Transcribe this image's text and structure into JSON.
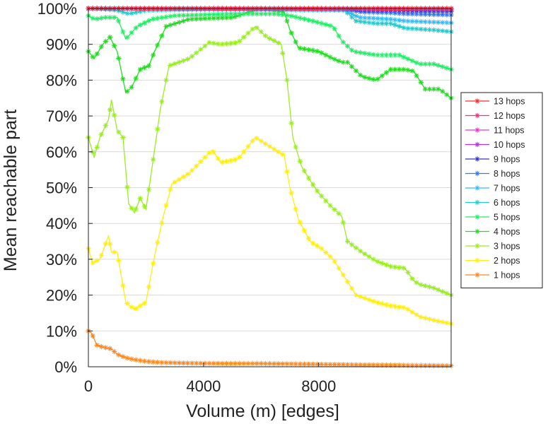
{
  "chart_data": {
    "type": "line",
    "title": "",
    "xlabel": "Volume (m) [edges]",
    "ylabel": "Mean reachable part",
    "xlim": [
      0,
      12600
    ],
    "ylim": [
      0,
      100
    ],
    "x_ticks": [
      0,
      4000,
      8000
    ],
    "x_tick_labels": [
      "0",
      "4000",
      "8000"
    ],
    "y_ticks": [
      0,
      10,
      20,
      30,
      40,
      50,
      60,
      70,
      80,
      90,
      100
    ],
    "y_tick_labels": [
      "0%",
      "10%",
      "20%",
      "30%",
      "40%",
      "50%",
      "60%",
      "70%",
      "80%",
      "90%",
      "100%"
    ],
    "grid": "horizontal",
    "legend_position": "right",
    "series": [
      {
        "name": "13 hops",
        "color": "#ff2a2a",
        "x": [
          0,
          9500,
          12600
        ],
        "y": [
          100,
          100,
          100
        ]
      },
      {
        "name": "12 hops",
        "color": "#ff2a7f",
        "x": [
          0,
          9500,
          12600
        ],
        "y": [
          100,
          100,
          100
        ]
      },
      {
        "name": "11 hops",
        "color": "#ee33cc",
        "x": [
          0,
          9000,
          12600
        ],
        "y": [
          100,
          99.9,
          99.9
        ]
      },
      {
        "name": "10 hops",
        "color": "#aa33ee",
        "x": [
          0,
          9000,
          12600
        ],
        "y": [
          100,
          99.9,
          99.8
        ]
      },
      {
        "name": "9 hops",
        "color": "#3333cc",
        "x": [
          0,
          8900,
          9500,
          10500,
          11000,
          12600
        ],
        "y": [
          100,
          99.9,
          99.5,
          99.5,
          99.3,
          99.2
        ]
      },
      {
        "name": "8 hops",
        "color": "#3377ff",
        "x": [
          0,
          8900,
          9500,
          10500,
          11000,
          12600
        ],
        "y": [
          100,
          99.8,
          99,
          98.8,
          98.5,
          98.2
        ]
      },
      {
        "name": "7 hops",
        "color": "#33bbff",
        "x": [
          0,
          8900,
          9400,
          10500,
          11000,
          12600
        ],
        "y": [
          100,
          99.5,
          97.5,
          97,
          96.5,
          96
        ]
      },
      {
        "name": "6 hops",
        "color": "#22cccc",
        "x": [
          0,
          400,
          1000,
          1400,
          2000,
          6000,
          8900,
          9300,
          10000,
          10500,
          11000,
          12000,
          12600
        ],
        "y": [
          100,
          99.9,
          99.5,
          98.5,
          99.5,
          100,
          99.5,
          96.5,
          95.8,
          95.8,
          94.5,
          94,
          93.5
        ]
      },
      {
        "name": "5 hops",
        "color": "#22ee66",
        "x": [
          0,
          200,
          600,
          1000,
          1300,
          1700,
          2200,
          3000,
          5000,
          6500,
          7000,
          7800,
          8500,
          8800,
          9200,
          10000,
          10800,
          11500,
          12000,
          12600
        ],
        "y": [
          98,
          97,
          97.5,
          97.5,
          91.5,
          95,
          97,
          98,
          98.5,
          98.5,
          98,
          96.5,
          95,
          91,
          88,
          87,
          87,
          84.5,
          84.5,
          83
        ]
      },
      {
        "name": "4 hops",
        "color": "#22dd22",
        "x": [
          0,
          200,
          500,
          750,
          1000,
          1300,
          1500,
          1800,
          2100,
          2300,
          2700,
          3500,
          5000,
          6000,
          6800,
          7000,
          7300,
          8000,
          8500,
          8800,
          9000,
          9500,
          10000,
          10500,
          11000,
          11300,
          11700,
          12200,
          12600
        ],
        "y": [
          88,
          86,
          90,
          92,
          88,
          76.5,
          78,
          83,
          84,
          88,
          95,
          97,
          97.5,
          100,
          99,
          94,
          89,
          88,
          86,
          85,
          85,
          81,
          80,
          83,
          83,
          82.5,
          77.5,
          77.5,
          75
        ]
      },
      {
        "name": "3 hops",
        "color": "#99ee22",
        "x": [
          0,
          200,
          400,
          700,
          800,
          1000,
          1200,
          1400,
          1600,
          1800,
          2000,
          2200,
          2500,
          2800,
          3500,
          4200,
          4600,
          5200,
          5800,
          6200,
          6700,
          6900,
          7100,
          7400,
          7700,
          8000,
          8400,
          8800,
          9000,
          9500,
          10000,
          10500,
          11000,
          11300,
          11500,
          12000,
          12600
        ],
        "y": [
          64,
          58.5,
          64,
          69,
          74.5,
          66,
          64,
          45.5,
          43,
          47,
          44,
          55,
          72,
          84,
          86,
          90.5,
          90,
          90.5,
          95,
          92,
          90,
          80,
          64,
          56,
          52,
          48.5,
          45,
          42,
          35,
          32,
          29.5,
          28,
          27.5,
          24,
          23,
          22,
          20
        ]
      },
      {
        "name": "2 hops",
        "color": "#ffee11",
        "x": [
          0,
          150,
          400,
          700,
          800,
          1000,
          1300,
          1600,
          2000,
          2300,
          2600,
          2900,
          3500,
          4300,
          4600,
          5200,
          5800,
          6200,
          6800,
          7000,
          7300,
          7700,
          8100,
          8500,
          8900,
          9300,
          10000,
          10500,
          11000,
          11500,
          12000,
          12600
        ],
        "y": [
          33,
          29,
          30,
          36.5,
          32,
          32,
          18,
          16,
          18,
          31,
          42,
          51,
          54,
          60.5,
          57,
          58,
          64,
          62,
          59,
          50,
          41,
          35,
          33,
          30,
          25,
          20,
          18,
          17,
          16.5,
          14,
          13,
          12
        ]
      },
      {
        "name": "1 hops",
        "color": "#ff8822",
        "x": [
          0,
          100,
          300,
          500,
          800,
          1000,
          1300,
          1600,
          2000,
          2500,
          3500,
          5000,
          6000,
          7000,
          8000,
          9000,
          10000,
          11000,
          12600
        ],
        "y": [
          10,
          9.5,
          6,
          5.5,
          5,
          3.5,
          2.5,
          2,
          1.5,
          1.2,
          1,
          0.9,
          0.9,
          0.8,
          0.7,
          0.6,
          0.5,
          0.4,
          0.3
        ]
      }
    ]
  }
}
